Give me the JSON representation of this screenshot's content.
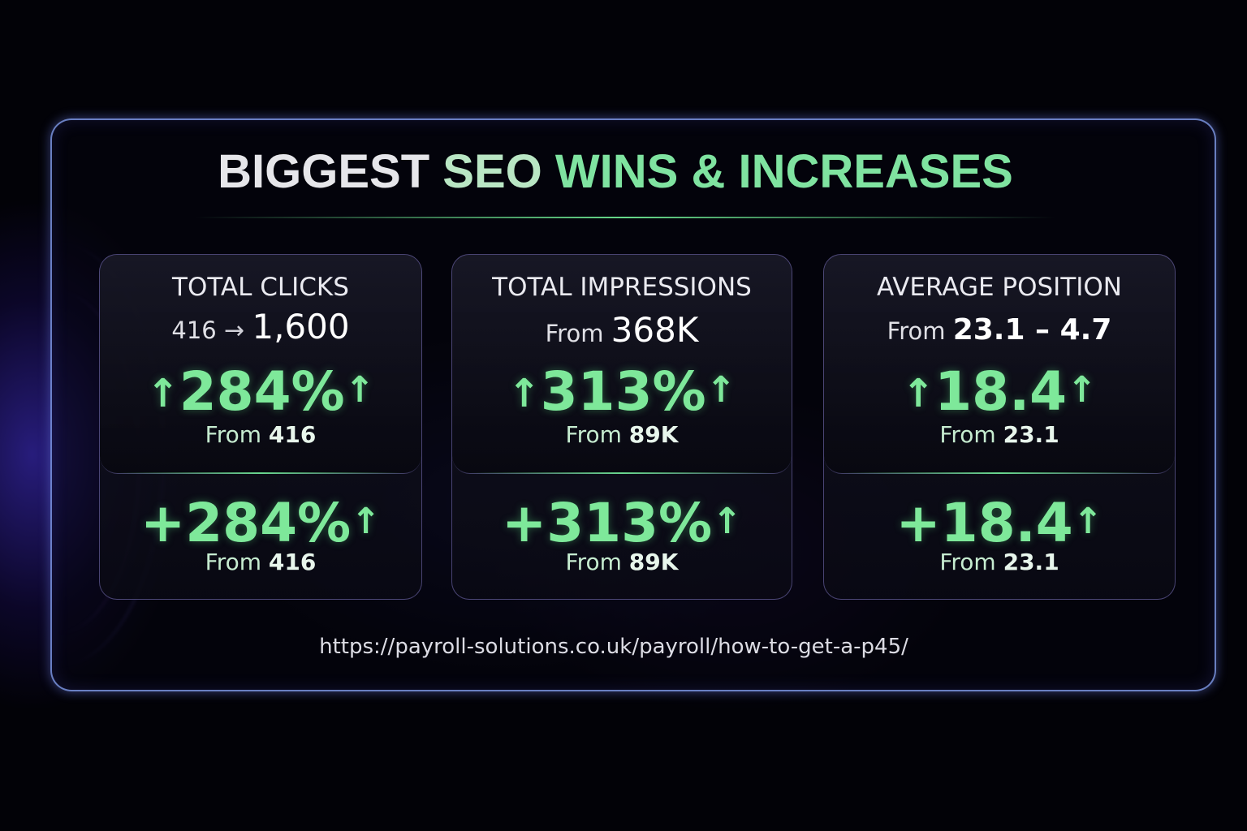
{
  "title": {
    "part1": "BIGGEST ",
    "part2": "SEO ",
    "part3": "WINS & INCREASES"
  },
  "cards": [
    {
      "label": "TOTAL CLICKS",
      "sub_from": "416",
      "sub_arrow": "→",
      "sub_to": "1,600",
      "top_value": "284%",
      "top_from_label": "From",
      "top_from_value": "416",
      "bottom_value": "+284%",
      "bottom_from_label": "From",
      "bottom_from_value": "416"
    },
    {
      "label": "TOTAL IMPRESSIONS",
      "sub_prefix": "From",
      "sub_value": "368K",
      "top_value": "313%",
      "top_from_label": "From",
      "top_from_value": "89K",
      "bottom_value": "+313%",
      "bottom_from_label": "From",
      "bottom_from_value": "89K"
    },
    {
      "label": "AVERAGE POSITION",
      "sub_prefix": "From",
      "sub_value": "23.1 – 4.7",
      "top_value": "18.4",
      "top_from_label": "From",
      "top_from_value": "23.1",
      "bottom_value": "+18.4",
      "bottom_from_label": "From",
      "bottom_from_value": "23.1"
    }
  ],
  "arrow_glyph": "↑",
  "url": "https://payroll-solutions.co.uk/payroll/how-to-get-a-p45/",
  "colors": {
    "accent_green": "#7ee89a",
    "frame_border": "#8caaff",
    "background": "#020207"
  }
}
